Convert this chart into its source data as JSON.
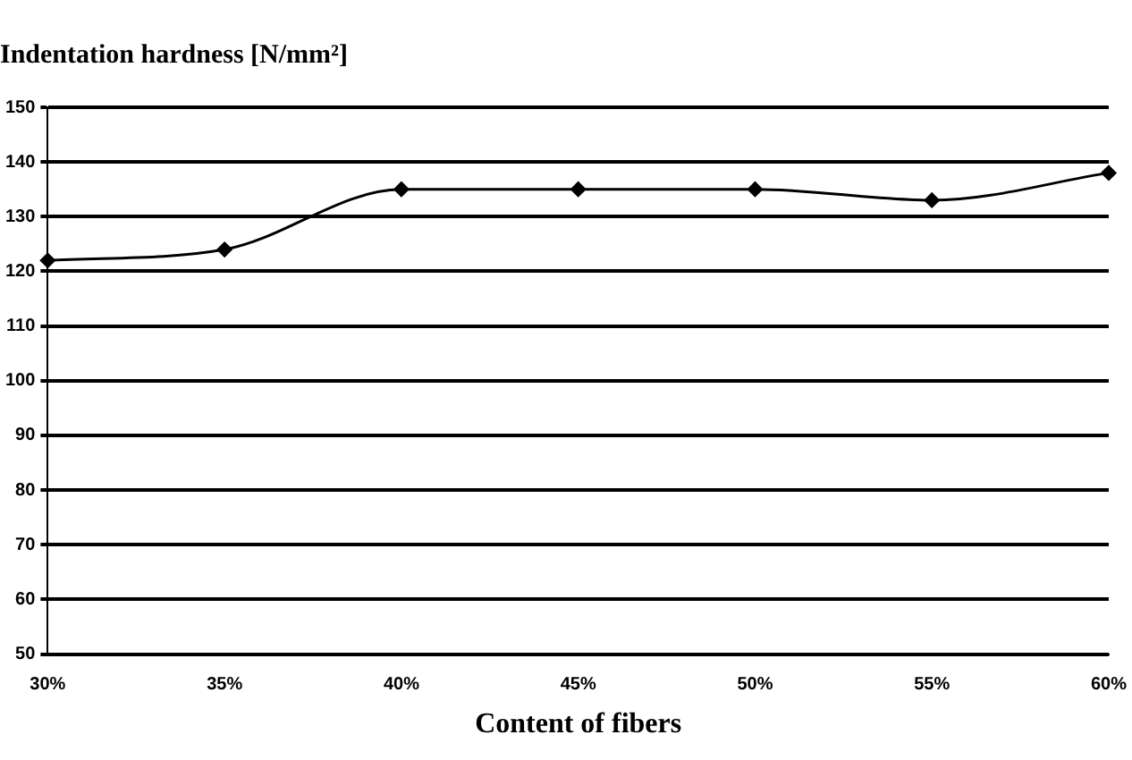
{
  "chart_data": {
    "type": "line",
    "ylabel": "Indentation hardness [N/mm²]",
    "xlabel": "Content of fibers",
    "categories": [
      "30%",
      "35%",
      "40%",
      "45%",
      "50%",
      "55%",
      "60%"
    ],
    "series": [
      {
        "color": "#000000",
        "values": [
          122,
          124,
          135,
          135,
          135,
          133,
          138
        ]
      }
    ],
    "ylim": [
      50,
      150
    ],
    "yticks": [
      50,
      60,
      70,
      80,
      90,
      100,
      110,
      120,
      130,
      140,
      150
    ],
    "grid": "y",
    "marker": "diamond",
    "legend": false
  }
}
